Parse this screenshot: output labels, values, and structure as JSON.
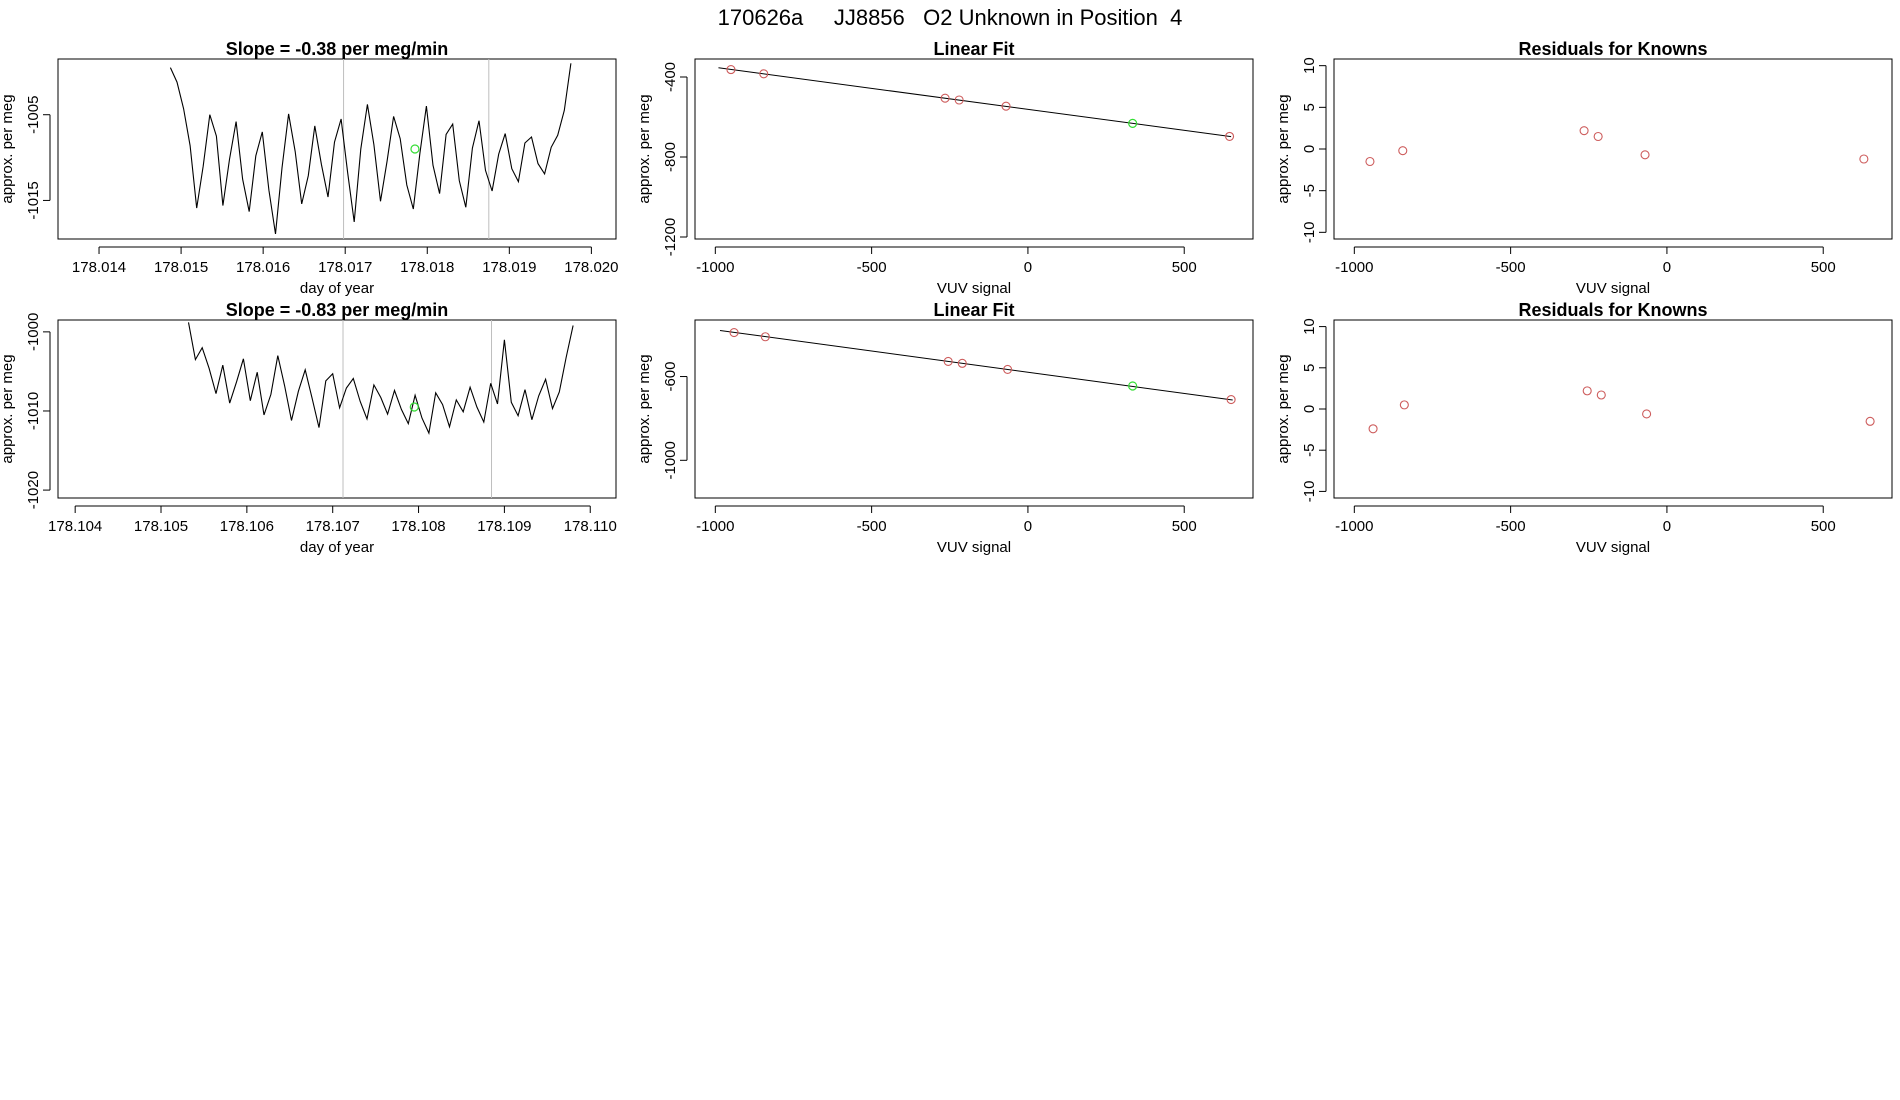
{
  "figure_title": "170626a     JJ8856   O2 Unknown in Position  4",
  "colors": {
    "line": "#000000",
    "known": "#cd5c5c",
    "unknown": "#33dd33",
    "vline": "#bebebe"
  },
  "chart_data": [
    {
      "type": "line",
      "title": "Slope =  -0.38  per meg/min",
      "xlabel": "day of year",
      "ylabel": "approx. per meg",
      "xlim": [
        178.0135,
        178.0203
      ],
      "ylim": [
        -1019.5,
        -998.5
      ],
      "xticks": [
        "178.014",
        "178.015",
        "178.016",
        "178.017",
        "178.018",
        "178.019",
        "178.020"
      ],
      "yticks": [
        "-1005",
        "-1015"
      ],
      "vlines": [
        178.01698,
        178.01875
      ],
      "unknown_point": {
        "x": 178.01785,
        "y": -1009
      },
      "series": [
        {
          "x": [
            178.01487,
            178.01495,
            178.01503,
            178.01511,
            178.01519,
            178.01527,
            178.01535,
            178.01543,
            178.01551,
            178.01559,
            178.01567,
            178.01575,
            178.01583,
            178.01591,
            178.01599,
            178.01607,
            178.01615,
            178.01623,
            178.01631,
            178.01639,
            178.01647,
            178.01655,
            178.01663,
            178.01671,
            178.01679,
            178.01687,
            178.01695,
            178.01703,
            178.01711,
            178.01719,
            178.01727,
            178.01735,
            178.01743,
            178.01751,
            178.01759,
            178.01767,
            178.01775,
            178.01783,
            178.01791,
            178.01799,
            178.01807,
            178.01815,
            178.01823,
            178.01831,
            178.01839,
            178.01847,
            178.01855,
            178.01863,
            178.01871,
            178.01879,
            178.01887,
            178.01895,
            178.01903,
            178.01911,
            178.01919,
            178.01927,
            178.01935,
            178.01943,
            178.01951,
            178.01959,
            178.01967,
            178.01975
          ],
          "y": [
            -999.5,
            -1001.2,
            -1004.3,
            -1008.6,
            -1015.9,
            -1011.0,
            -1005.0,
            -1007.5,
            -1015.6,
            -1010.2,
            -1005.8,
            -1012.5,
            -1016.3,
            -1009.8,
            -1007.0,
            -1013.8,
            -1018.9,
            -1011.2,
            -1004.9,
            -1009.3,
            -1015.4,
            -1012.1,
            -1006.3,
            -1010.8,
            -1014.6,
            -1008.2,
            -1005.5,
            -1011.8,
            -1017.5,
            -1009.0,
            -1003.8,
            -1008.5,
            -1015.1,
            -1010.4,
            -1005.2,
            -1007.8,
            -1013.2,
            -1016.0,
            -1009.5,
            -1004.0,
            -1010.9,
            -1014.2,
            -1007.3,
            -1006.1,
            -1012.7,
            -1015.8,
            -1008.9,
            -1005.7,
            -1011.5,
            -1013.9,
            -1009.6,
            -1007.2,
            -1011.3,
            -1012.8,
            -1008.3,
            -1007.6,
            -1010.7,
            -1011.9,
            -1008.8,
            -1007.4,
            -1004.5,
            -999.0
          ]
        }
      ]
    },
    {
      "type": "scatter",
      "title": "Linear Fit",
      "xlabel": "VUV signal",
      "ylabel": "approx. per meg",
      "xlim": [
        -1065,
        720
      ],
      "ylim": [
        -1210,
        -310
      ],
      "xticks": [
        -1000,
        -500,
        0,
        500
      ],
      "yticks": [
        -400,
        -800,
        -1200
      ],
      "known_points": [
        {
          "x": -950,
          "y": -363
        },
        {
          "x": -845,
          "y": -384
        },
        {
          "x": -265,
          "y": -506
        },
        {
          "x": -220,
          "y": -515
        },
        {
          "x": -70,
          "y": -546
        },
        {
          "x": 645,
          "y": -697
        }
      ],
      "unknown_point": {
        "x": 335,
        "y": -632
      },
      "fit_line": {
        "x": [
          -990,
          650
        ],
        "y": [
          -354,
          -698
        ]
      }
    },
    {
      "type": "scatter",
      "title": "Residuals for Knowns",
      "xlabel": "VUV signal",
      "ylabel": "approx. per meg",
      "xlim": [
        -1065,
        720
      ],
      "ylim": [
        -10.8,
        10.8
      ],
      "xticks": [
        -1000,
        -500,
        0,
        500
      ],
      "yticks": [
        10,
        5,
        0,
        -5,
        -10
      ],
      "known_points": [
        {
          "x": -950,
          "y": -1.5
        },
        {
          "x": -845,
          "y": -0.2
        },
        {
          "x": -265,
          "y": 2.2
        },
        {
          "x": -220,
          "y": 1.5
        },
        {
          "x": -70,
          "y": -0.7
        },
        {
          "x": 630,
          "y": -1.2
        }
      ]
    },
    {
      "type": "line",
      "title": "Slope =  -0.83  per meg/min",
      "xlabel": "day of year",
      "ylabel": "approx. per meg",
      "xlim": [
        178.1038,
        178.1103
      ],
      "ylim": [
        -1021,
        -998.5
      ],
      "xticks": [
        "178.104",
        "178.105",
        "178.106",
        "178.107",
        "178.108",
        "178.109",
        "178.110"
      ],
      "yticks": [
        "-1000",
        "-1010",
        "-1020"
      ],
      "vlines": [
        178.10712,
        178.10885
      ],
      "unknown_point": {
        "x": 178.10795,
        "y": -1009.5
      },
      "series": [
        {
          "x": [
            178.10532,
            178.1054,
            178.10548,
            178.10556,
            178.10564,
            178.10572,
            178.1058,
            178.10588,
            178.10596,
            178.10604,
            178.10612,
            178.1062,
            178.10628,
            178.10636,
            178.10644,
            178.10652,
            178.1066,
            178.10668,
            178.10676,
            178.10684,
            178.10692,
            178.107,
            178.10708,
            178.10716,
            178.10724,
            178.10732,
            178.1074,
            178.10748,
            178.10756,
            178.10764,
            178.10772,
            178.1078,
            178.10788,
            178.10796,
            178.10804,
            178.10812,
            178.1082,
            178.10828,
            178.10836,
            178.10844,
            178.10852,
            178.1086,
            178.10868,
            178.10876,
            178.10884,
            178.10892,
            178.109,
            178.10908,
            178.10916,
            178.10924,
            178.10932,
            178.1094,
            178.10948,
            178.10956,
            178.10964,
            178.10972,
            178.1098
          ],
          "y": [
            -998.8,
            -1003.5,
            -1002.0,
            -1004.6,
            -1007.8,
            -1004.2,
            -1009.0,
            -1006.3,
            -1003.4,
            -1008.7,
            -1005.1,
            -1010.5,
            -1007.9,
            -1003.0,
            -1006.8,
            -1011.2,
            -1007.5,
            -1004.8,
            -1008.4,
            -1012.1,
            -1006.2,
            -1005.3,
            -1009.6,
            -1007.1,
            -1005.9,
            -1008.8,
            -1011.0,
            -1006.7,
            -1008.3,
            -1010.4,
            -1007.4,
            -1009.8,
            -1011.6,
            -1008.0,
            -1010.9,
            -1012.8,
            -1007.7,
            -1009.2,
            -1012.0,
            -1008.6,
            -1010.1,
            -1007.0,
            -1009.5,
            -1011.4,
            -1006.5,
            -1009.1,
            -1001.0,
            -1008.9,
            -1010.6,
            -1007.3,
            -1011.1,
            -1008.1,
            -1006.0,
            -1009.7,
            -1007.6,
            -1003.2,
            -999.2
          ]
        }
      ]
    },
    {
      "type": "scatter",
      "title": "Linear Fit",
      "xlabel": "VUV signal",
      "ylabel": "approx. per meg",
      "xlim": [
        -1065,
        720
      ],
      "ylim": [
        -1180,
        -330
      ],
      "xticks": [
        -1000,
        -500,
        0,
        500
      ],
      "yticks": [
        -600,
        -1000
      ],
      "known_points": [
        {
          "x": -940,
          "y": -390
        },
        {
          "x": -840,
          "y": -410
        },
        {
          "x": -255,
          "y": -528
        },
        {
          "x": -210,
          "y": -537
        },
        {
          "x": -65,
          "y": -566
        },
        {
          "x": 650,
          "y": -710
        }
      ],
      "unknown_point": {
        "x": 335,
        "y": -645
      },
      "fit_line": {
        "x": [
          -985,
          655
        ],
        "y": [
          -380,
          -712
        ]
      }
    },
    {
      "type": "scatter",
      "title": "Residuals for Knowns",
      "xlabel": "VUV signal",
      "ylabel": "approx. per meg",
      "xlim": [
        -1065,
        720
      ],
      "ylim": [
        -10.8,
        10.8
      ],
      "xticks": [
        -1000,
        -500,
        0,
        500
      ],
      "yticks": [
        10,
        5,
        0,
        -5,
        -10
      ],
      "known_points": [
        {
          "x": -940,
          "y": -2.4
        },
        {
          "x": -840,
          "y": 0.5
        },
        {
          "x": -255,
          "y": 2.2
        },
        {
          "x": -210,
          "y": 1.7
        },
        {
          "x": -65,
          "y": -0.6
        },
        {
          "x": 650,
          "y": -1.5
        }
      ]
    }
  ]
}
